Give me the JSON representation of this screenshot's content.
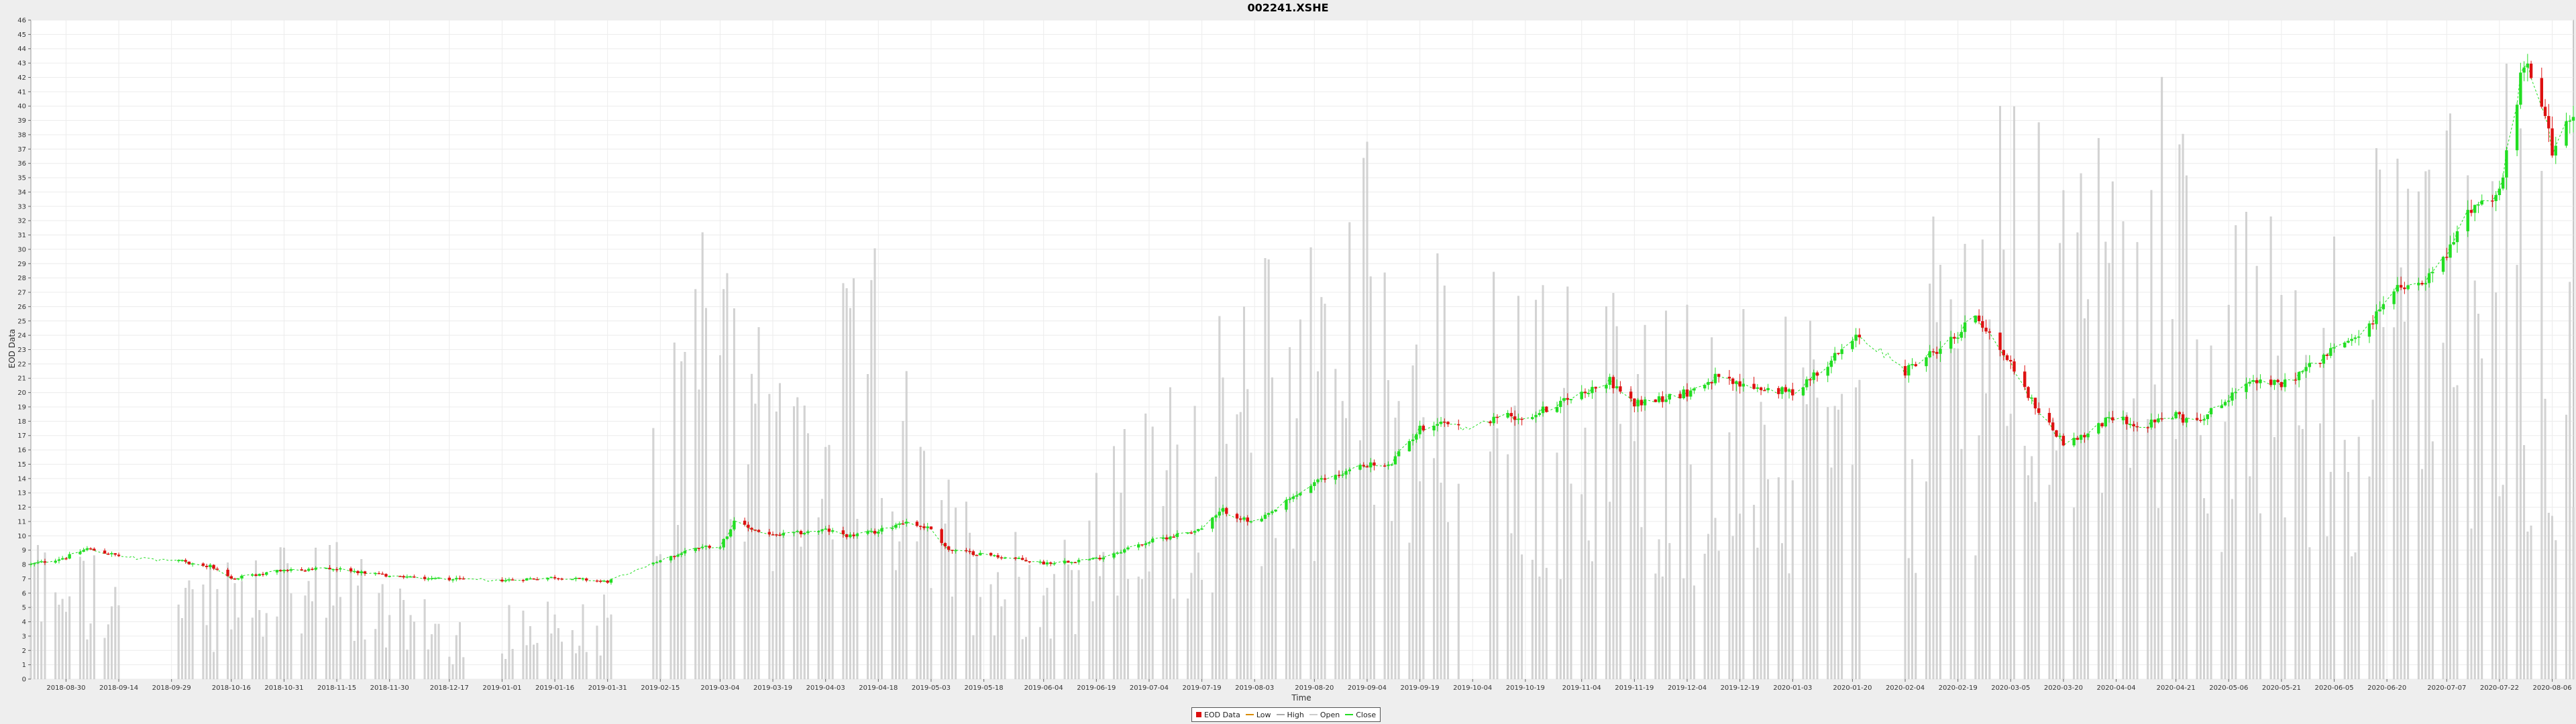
{
  "chart_data": {
    "type": "candlestick",
    "title": "002241.XSHE",
    "xlabel": "Time",
    "ylabel": "EOD Data",
    "ylim": [
      0,
      46
    ],
    "yticks": [
      0,
      1,
      2,
      3,
      4,
      5,
      6,
      7,
      8,
      9,
      10,
      11,
      12,
      13,
      14,
      15,
      16,
      17,
      18,
      19,
      20,
      21,
      22,
      23,
      24,
      25,
      26,
      27,
      28,
      29,
      30,
      31,
      32,
      33,
      34,
      35,
      36,
      37,
      38,
      39,
      40,
      41,
      42,
      43,
      44,
      45,
      46
    ],
    "xlim": [
      "2018-08-20",
      "2020-08-12"
    ],
    "xticks": [
      "2018-08-30",
      "2018-09-14",
      "2018-09-29",
      "2018-10-16",
      "2018-10-31",
      "2018-11-15",
      "2018-11-30",
      "2018-12-17",
      "2019-01-01",
      "2019-01-16",
      "2019-01-31",
      "2019-02-15",
      "2019-03-04",
      "2019-03-19",
      "2019-04-03",
      "2019-04-18",
      "2019-05-03",
      "2019-05-18",
      "2019-06-04",
      "2019-06-19",
      "2019-07-04",
      "2019-07-19",
      "2019-08-03",
      "2019-08-20",
      "2019-09-04",
      "2019-09-19",
      "2019-10-04",
      "2019-10-19",
      "2019-11-04",
      "2019-11-19",
      "2019-12-04",
      "2019-12-19",
      "2020-01-03",
      "2020-01-20",
      "2020-02-04",
      "2020-02-19",
      "2020-03-05",
      "2020-03-20",
      "2020-04-04",
      "2020-04-21",
      "2020-05-06",
      "2020-05-21",
      "2020-06-05",
      "2020-06-20",
      "2020-07-07",
      "2020-07-22",
      "2020-08-06"
    ],
    "grid": true,
    "legend_position": "bottom-center",
    "legend": [
      "EOD Data",
      "Low",
      "High",
      "Open",
      "Close"
    ],
    "colors": {
      "up": "#22dd22",
      "down": "#dd1111",
      "volume": "#d3d3d3",
      "close_line": "#22dd22"
    },
    "close_path": [
      [
        "2018-08-20",
        8.0
      ],
      [
        "2018-08-30",
        8.5
      ],
      [
        "2018-09-05",
        9.1
      ],
      [
        "2018-09-14",
        8.6
      ],
      [
        "2018-09-20",
        8.4
      ],
      [
        "2018-09-29",
        8.3
      ],
      [
        "2018-10-10",
        7.9
      ],
      [
        "2018-10-16",
        7.0
      ],
      [
        "2018-10-31",
        7.6
      ],
      [
        "2018-11-15",
        7.7
      ],
      [
        "2018-11-30",
        7.2
      ],
      [
        "2018-12-17",
        7.0
      ],
      [
        "2019-01-01",
        6.9
      ],
      [
        "2019-01-16",
        7.1
      ],
      [
        "2019-01-31",
        6.8
      ],
      [
        "2019-02-15",
        8.2
      ],
      [
        "2019-02-25",
        9.2
      ],
      [
        "2019-03-04",
        9.3
      ],
      [
        "2019-03-08",
        10.9
      ],
      [
        "2019-03-19",
        10.0
      ],
      [
        "2019-04-03",
        10.4
      ],
      [
        "2019-04-10",
        10.0
      ],
      [
        "2019-04-18",
        10.3
      ],
      [
        "2019-04-25",
        11.0
      ],
      [
        "2019-05-03",
        10.5
      ],
      [
        "2019-05-08",
        9.0
      ],
      [
        "2019-05-18",
        8.7
      ],
      [
        "2019-06-04",
        8.1
      ],
      [
        "2019-06-19",
        8.4
      ],
      [
        "2019-07-04",
        9.6
      ],
      [
        "2019-07-19",
        10.5
      ],
      [
        "2019-07-25",
        11.8
      ],
      [
        "2019-08-03",
        10.8
      ],
      [
        "2019-08-20",
        13.7
      ],
      [
        "2019-09-04",
        15.0
      ],
      [
        "2019-09-10",
        14.8
      ],
      [
        "2019-09-19",
        17.5
      ],
      [
        "2019-09-25",
        18.0
      ],
      [
        "2019-10-04",
        17.4
      ],
      [
        "2019-10-12",
        18.5
      ],
      [
        "2019-10-19",
        18.2
      ],
      [
        "2019-11-04",
        20.0
      ],
      [
        "2019-11-12",
        20.8
      ],
      [
        "2019-11-19",
        19.2
      ],
      [
        "2019-12-04",
        20.0
      ],
      [
        "2019-12-12",
        21.0
      ],
      [
        "2019-12-19",
        20.5
      ],
      [
        "2020-01-03",
        20.0
      ],
      [
        "2020-01-10",
        21.5
      ],
      [
        "2020-01-20",
        23.5
      ],
      [
        "2020-01-22",
        24.0
      ],
      [
        "2020-02-04",
        21.5
      ],
      [
        "2020-02-10",
        22.5
      ],
      [
        "2020-02-19",
        24.0
      ],
      [
        "2020-02-24",
        25.5
      ],
      [
        "2020-03-05",
        22.0
      ],
      [
        "2020-03-12",
        19.0
      ],
      [
        "2020-03-20",
        16.5
      ],
      [
        "2020-03-26",
        17.0
      ],
      [
        "2020-04-04",
        18.5
      ],
      [
        "2020-04-10",
        17.5
      ],
      [
        "2020-04-21",
        18.5
      ],
      [
        "2020-04-25",
        17.8
      ],
      [
        "2020-05-06",
        19.5
      ],
      [
        "2020-05-12",
        21.0
      ],
      [
        "2020-05-21",
        20.5
      ],
      [
        "2020-06-05",
        23.0
      ],
      [
        "2020-06-15",
        24.5
      ],
      [
        "2020-06-20",
        27.0
      ],
      [
        "2020-06-30",
        27.5
      ],
      [
        "2020-07-07",
        29.5
      ],
      [
        "2020-07-14",
        33.0
      ],
      [
        "2020-07-22",
        34.0
      ],
      [
        "2020-07-29",
        43.0
      ],
      [
        "2020-08-03",
        40.0
      ],
      [
        "2020-08-06",
        37.0
      ],
      [
        "2020-08-10",
        39.0
      ]
    ],
    "volume_profile": [
      [
        "2018-08-20",
        10
      ],
      [
        "2018-09-29",
        6
      ],
      [
        "2018-10-16",
        8
      ],
      [
        "2018-11-15",
        9
      ],
      [
        "2018-12-17",
        4
      ],
      [
        "2019-01-31",
        6
      ],
      [
        "2019-02-15",
        18
      ],
      [
        "2019-03-04",
        40
      ],
      [
        "2019-03-19",
        20
      ],
      [
        "2019-04-18",
        28
      ],
      [
        "2019-05-03",
        14
      ],
      [
        "2019-06-04",
        9
      ],
      [
        "2019-06-19",
        14
      ],
      [
        "2019-07-19",
        22
      ],
      [
        "2019-08-20",
        32
      ],
      [
        "2019-09-04",
        36
      ],
      [
        "2019-09-19",
        28
      ],
      [
        "2019-10-19",
        26
      ],
      [
        "2019-11-19",
        26
      ],
      [
        "2019-12-19",
        24
      ],
      [
        "2020-01-20",
        22
      ],
      [
        "2020-02-19",
        32
      ],
      [
        "2020-03-05",
        38
      ],
      [
        "2020-03-20",
        34
      ],
      [
        "2020-04-21",
        40
      ],
      [
        "2020-05-06",
        30
      ],
      [
        "2020-06-05",
        32
      ],
      [
        "2020-07-07",
        38
      ],
      [
        "2020-07-22",
        40
      ],
      [
        "2020-08-12",
        34
      ]
    ],
    "gaps": [
      [
        "2018-09-16",
        "2018-09-28"
      ],
      [
        "2018-12-22",
        "2018-12-31"
      ],
      [
        "2019-02-02",
        "2019-02-12"
      ],
      [
        "2019-10-01",
        "2019-10-08"
      ],
      [
        "2020-01-23",
        "2020-02-03"
      ]
    ]
  }
}
